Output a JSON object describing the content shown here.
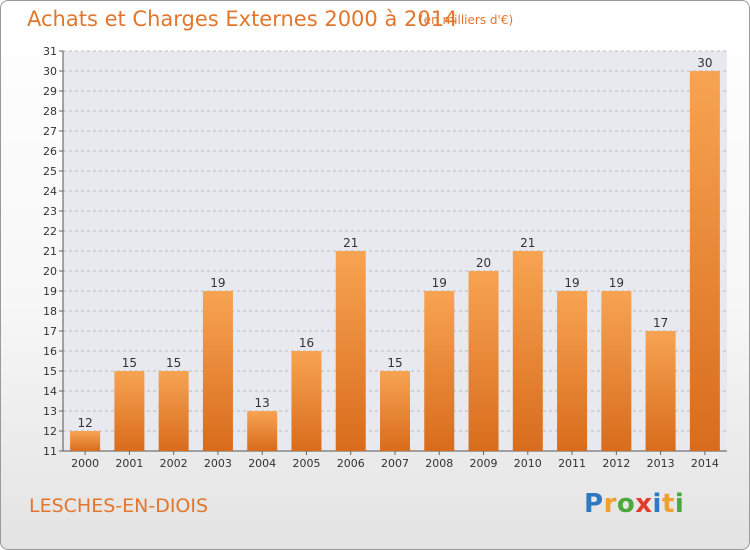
{
  "header": {
    "title": "Achats et Charges Externes 2000 à 2014",
    "subtitle": "(en milliers d'€)"
  },
  "footer": {
    "place": "LESCHES-EN-DIOIS",
    "logo_letters": [
      {
        "ch": "P",
        "color": "#2f78c4"
      },
      {
        "ch": "r",
        "color": "#f0a030"
      },
      {
        "ch": "o",
        "color": "#4aa83c"
      },
      {
        "ch": "x",
        "color": "#e23c2c"
      },
      {
        "ch": "i",
        "color": "#2f78c4"
      },
      {
        "ch": "t",
        "color": "#f0a030"
      },
      {
        "ch": "i",
        "color": "#4aa83c"
      }
    ]
  },
  "colors": {
    "bar_top": "#f7a452",
    "bar_bottom": "#d86c1c",
    "grid": "#bdbdbd",
    "plot_bg": "#e8e8ef",
    "accent": "#e2762c"
  },
  "chart_data": {
    "type": "bar",
    "categories": [
      "2000",
      "2001",
      "2002",
      "2003",
      "2004",
      "2005",
      "2006",
      "2007",
      "2008",
      "2009",
      "2010",
      "2011",
      "2012",
      "2013",
      "2014"
    ],
    "values": [
      12,
      15,
      15,
      19,
      13,
      16,
      21,
      15,
      19,
      20,
      21,
      19,
      19,
      17,
      30
    ],
    "yticks": [
      11,
      12,
      13,
      14,
      15,
      16,
      17,
      18,
      19,
      20,
      21,
      22,
      23,
      24,
      25,
      26,
      27,
      28,
      29,
      30,
      31
    ],
    "ylim": [
      11,
      31
    ],
    "grid": true,
    "grid_style": "dashed"
  }
}
